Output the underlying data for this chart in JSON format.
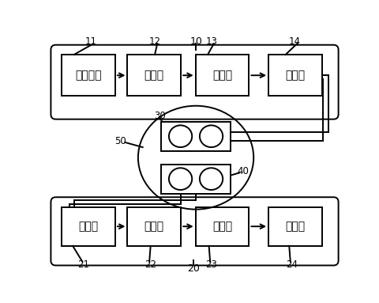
{
  "bg_color": "#ffffff",
  "line_color": "#000000",
  "top_group_label": "10",
  "bottom_group_label": "20",
  "top_boxes": [
    {
      "label": "预处理器",
      "num": "11"
    },
    {
      "label": "编码器",
      "num": "12"
    },
    {
      "label": "调制器",
      "num": "13"
    },
    {
      "label": "耦合器",
      "num": "14"
    }
  ],
  "bottom_boxes": [
    {
      "label": "探测器",
      "num": "21"
    },
    {
      "label": "解调器",
      "num": "22"
    },
    {
      "label": "解码器",
      "num": "23"
    },
    {
      "label": "处理器",
      "num": "24"
    }
  ],
  "mid_top_label": "30",
  "mid_bot_label": "40",
  "ellipse_label": "50",
  "figsize": [
    4.81,
    3.83
  ],
  "dpi": 100
}
